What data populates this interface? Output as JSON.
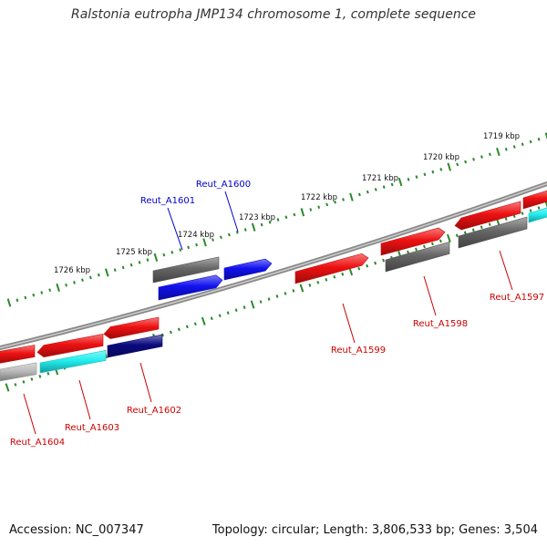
{
  "title": "Ralstonia eutropha JMP134 chromosome 1, complete sequence",
  "footer": {
    "accession": "Accession: NC_007347",
    "summary": "Topology: circular; Length: 3,806,533 bp; Genes: 3,504"
  },
  "colors": {
    "backbone": "#8a8a8a",
    "ticks": "#2a8a2a",
    "gene_red": "#ee1111",
    "gene_blue": "#1111ee",
    "gene_navy": "#0b0b80",
    "gene_cyan": "#22eeee",
    "gene_dark_gray": "#666666",
    "gene_light_gray": "#bbbbbb",
    "label_red": "#cc0000",
    "label_blue": "#0000cc"
  },
  "scale_labels": [
    "1726 kbp",
    "1725 kbp",
    "1724 kbp",
    "1723 kbp",
    "1722 kbp",
    "1721 kbp",
    "1720 kbp",
    "1719 kbp"
  ],
  "genes": [
    {
      "id": "Reut_A1601",
      "strand": "upper",
      "color": "blue",
      "label_color": "blue"
    },
    {
      "id": "Reut_A1600",
      "strand": "upper",
      "color": "blue",
      "label_color": "blue"
    },
    {
      "id": "Reut_A1599",
      "strand": "upper",
      "color": "red",
      "label_color": "red"
    },
    {
      "id": "Reut_A1598",
      "strand": "upper",
      "color": "red",
      "label_color": "red"
    },
    {
      "id": "Reut_A1597",
      "strand": "upper",
      "color": "red",
      "label_color": "red"
    },
    {
      "id": "Reut_A1602",
      "strand": "lower",
      "color": "navy",
      "label_color": "red"
    },
    {
      "id": "Reut_A1603",
      "strand": "upper",
      "color": "red",
      "label_color": "red"
    },
    {
      "id": "Reut_A1604",
      "strand": "upper",
      "color": "red",
      "label_color": "red"
    }
  ]
}
